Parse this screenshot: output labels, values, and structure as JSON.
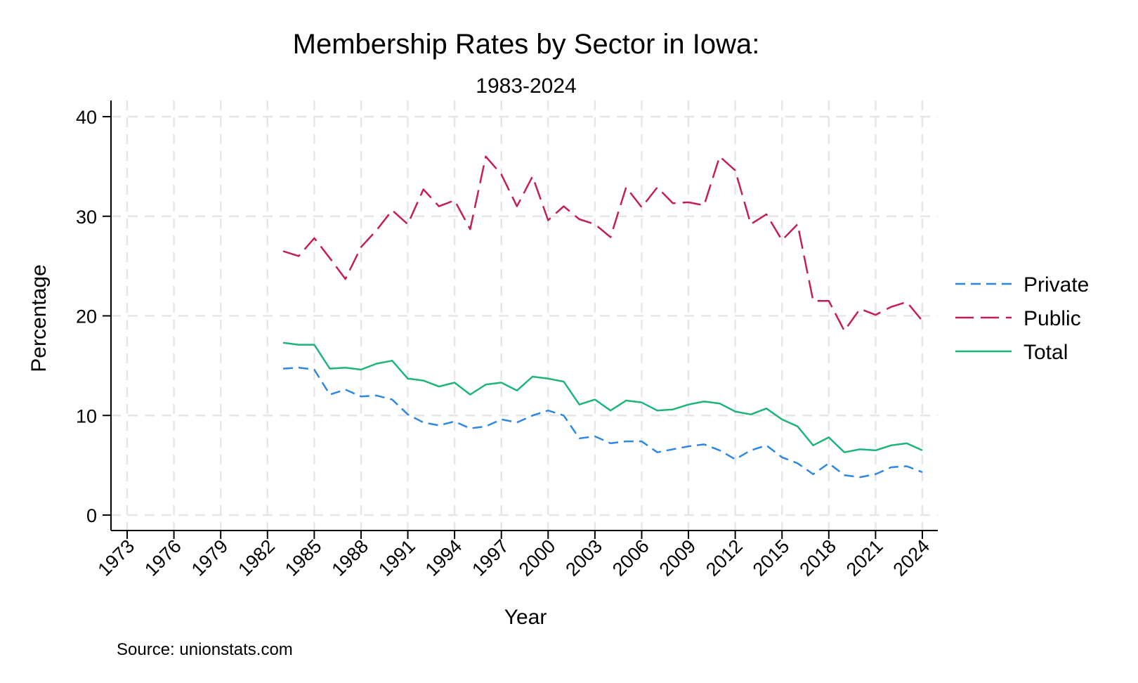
{
  "chart_data": {
    "type": "line",
    "title": "Membership Rates by Sector in Iowa:",
    "subtitle": "1983-2024",
    "xlabel": "Year",
    "ylabel": "Percentage",
    "source": "Source: unionstats.com",
    "xlim": [
      1973,
      2024
    ],
    "ylim": [
      0,
      40
    ],
    "xticks": [
      "1973",
      "1976",
      "1979",
      "1982",
      "1985",
      "1988",
      "1991",
      "1994",
      "1997",
      "2000",
      "2003",
      "2006",
      "2009",
      "2012",
      "2015",
      "2018",
      "2021",
      "2024"
    ],
    "yticks": [
      "0",
      "10",
      "20",
      "30",
      "40"
    ],
    "grid": true,
    "legend_position": "right",
    "x": [
      1983,
      1984,
      1985,
      1986,
      1987,
      1988,
      1989,
      1990,
      1991,
      1992,
      1993,
      1994,
      1995,
      1996,
      1997,
      1998,
      1999,
      2000,
      2001,
      2002,
      2003,
      2004,
      2005,
      2006,
      2007,
      2008,
      2009,
      2010,
      2011,
      2012,
      2013,
      2014,
      2015,
      2016,
      2017,
      2018,
      2019,
      2020,
      2021,
      2022,
      2023,
      2024
    ],
    "series": [
      {
        "name": "Private",
        "color": "#2e86e5",
        "dash": "dashed",
        "values": [
          14.7,
          14.8,
          14.6,
          12.1,
          12.6,
          11.9,
          12.0,
          11.6,
          10.1,
          9.3,
          9.0,
          9.4,
          8.7,
          8.9,
          9.6,
          9.3,
          10.0,
          10.5,
          10.0,
          7.7,
          7.9,
          7.2,
          7.4,
          7.4,
          6.3,
          6.6,
          6.9,
          7.1,
          6.5,
          5.6,
          6.5,
          7.0,
          5.8,
          5.2,
          4.1,
          5.2,
          4.0,
          3.8,
          4.1,
          4.8,
          4.9,
          4.3
        ]
      },
      {
        "name": "Public",
        "color": "#c41e5a",
        "dash": "longdash",
        "values": [
          26.5,
          26.0,
          27.8,
          25.8,
          23.7,
          26.9,
          28.6,
          30.6,
          29.2,
          32.7,
          31.0,
          31.6,
          28.7,
          36.0,
          34.2,
          31.0,
          34.0,
          29.6,
          31.0,
          29.7,
          29.2,
          27.9,
          32.9,
          30.9,
          32.9,
          31.3,
          31.4,
          31.1,
          36.0,
          34.6,
          29.2,
          30.2,
          27.6,
          29.2,
          21.5,
          21.5,
          18.5,
          20.7,
          20.1,
          20.9,
          21.4,
          19.5
        ]
      },
      {
        "name": "Total",
        "color": "#1db47a",
        "dash": "solid",
        "values": [
          17.3,
          17.1,
          17.1,
          14.7,
          14.8,
          14.6,
          15.2,
          15.5,
          13.7,
          13.5,
          12.9,
          13.3,
          12.1,
          13.1,
          13.3,
          12.5,
          13.9,
          13.7,
          13.4,
          11.1,
          11.6,
          10.5,
          11.5,
          11.3,
          10.5,
          10.6,
          11.1,
          11.4,
          11.2,
          10.4,
          10.1,
          10.7,
          9.6,
          8.9,
          7.0,
          7.8,
          6.3,
          6.6,
          6.5,
          7.0,
          7.2,
          6.5
        ]
      }
    ]
  }
}
